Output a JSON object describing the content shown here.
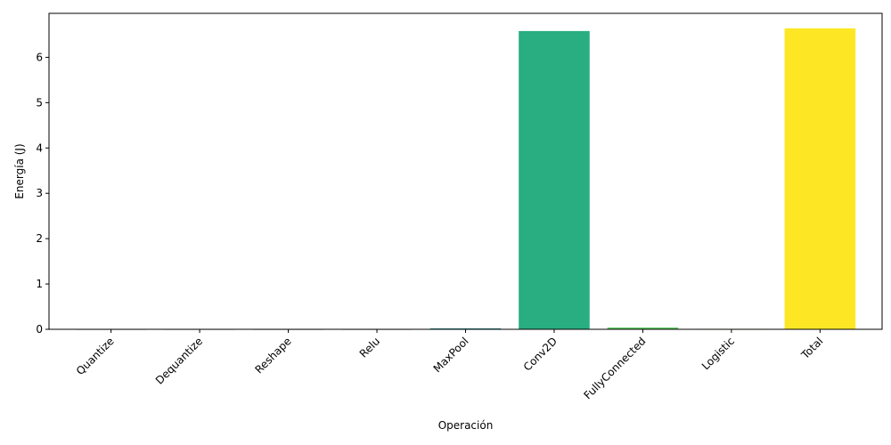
{
  "chart_data": {
    "type": "bar",
    "title": "",
    "xlabel": "Operación",
    "ylabel": "Energía (J)",
    "categories": [
      "Quantize",
      "Dequantize",
      "Reshape",
      "Relu",
      "MaxPool",
      "Conv2D",
      "FullyConnected",
      "Logistic",
      "Total"
    ],
    "values": [
      0.001,
      0.001,
      0.0005,
      0.0005,
      0.02,
      6.58,
      0.04,
      0.001,
      6.64
    ],
    "colors": [
      "#440154",
      "#472d7b",
      "#3b528b",
      "#2c728e",
      "#21918c",
      "#28ae80",
      "#5ec962",
      "#addc30",
      "#fde725"
    ],
    "ylim": [
      0,
      6.97
    ],
    "yticks": [
      0,
      1,
      2,
      3,
      4,
      5,
      6
    ],
    "grid": false,
    "legend": "none"
  }
}
